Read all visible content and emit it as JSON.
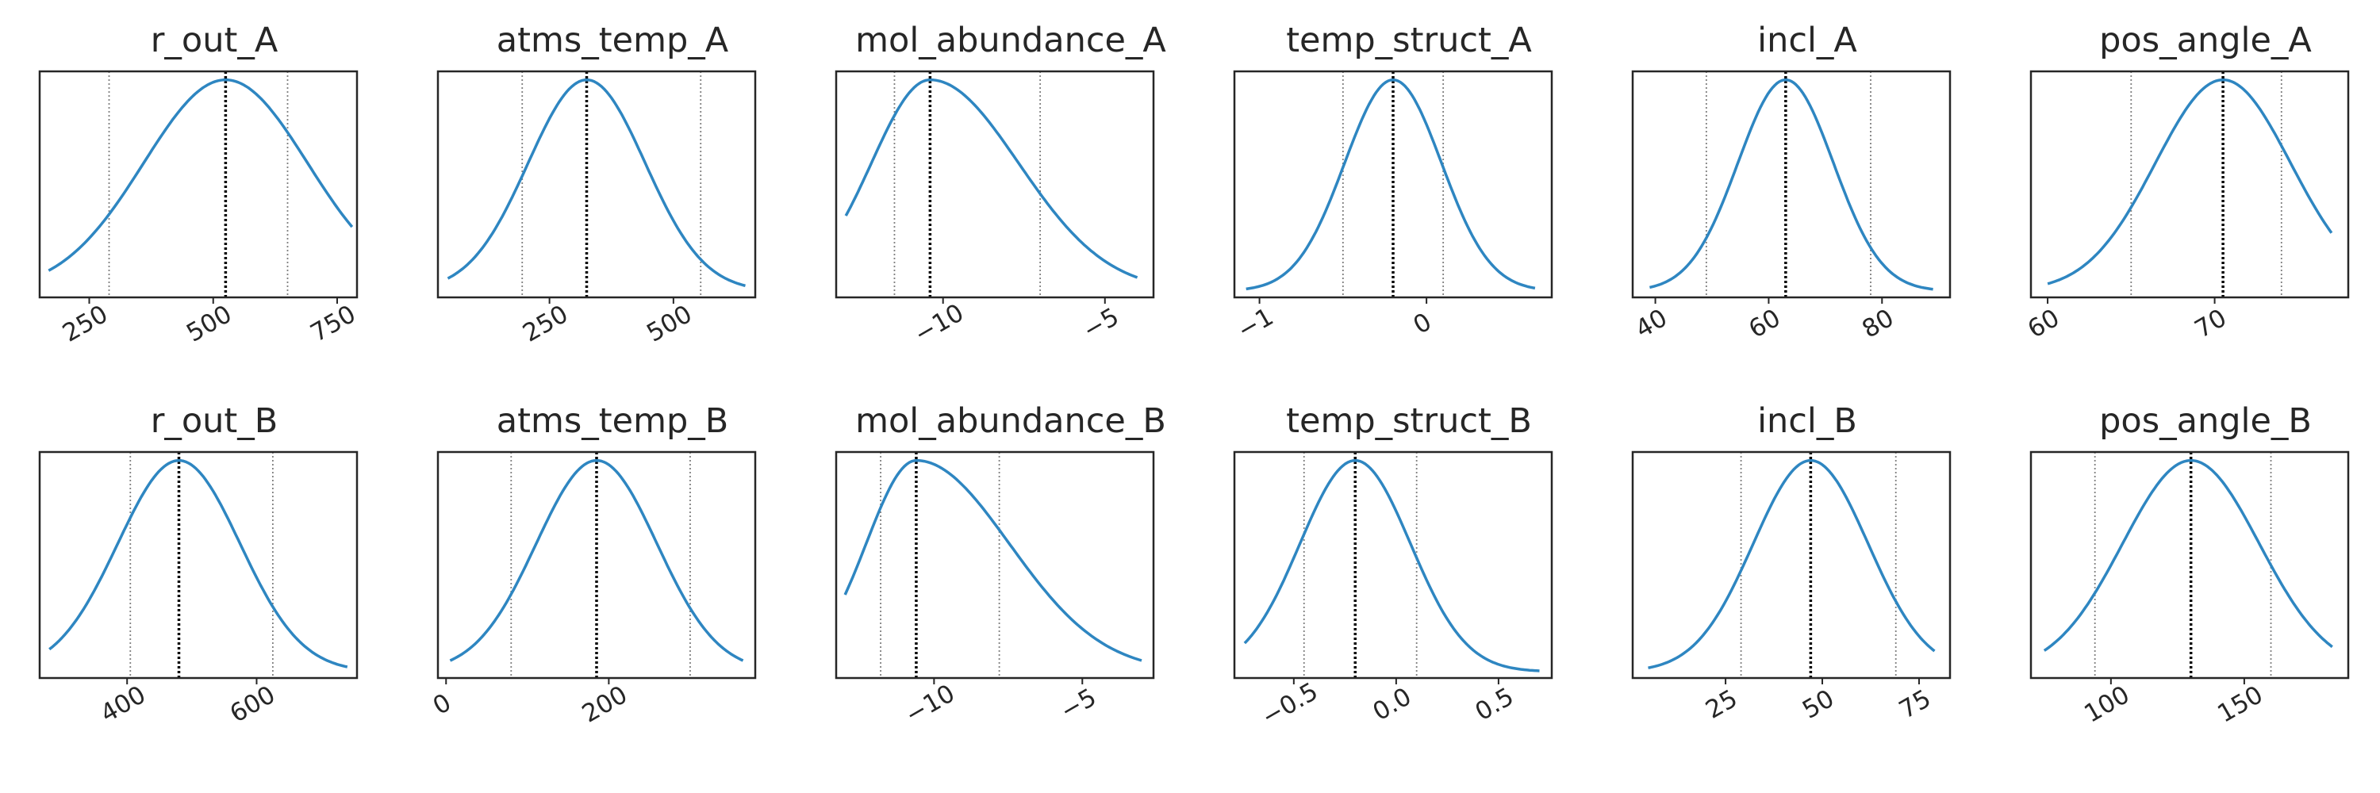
{
  "chart_data": [
    {
      "type": "line",
      "title": "r_out_A",
      "xlim": [
        150,
        790
      ],
      "ticks": [
        250,
        500,
        750
      ],
      "tick_labels": [
        "250",
        "500",
        "750"
      ],
      "mean": 525,
      "low": 290,
      "high": 650,
      "sigma": 245,
      "x_start": 168,
      "x_end": 780,
      "x": [
        168,
        230,
        290,
        350,
        410,
        470,
        525,
        580,
        650,
        700,
        780
      ],
      "y": [
        0.04,
        0.26,
        0.48,
        0.69,
        0.86,
        0.97,
        1.0,
        0.97,
        0.83,
        0.65,
        0.28
      ]
    },
    {
      "type": "line",
      "title": "atms_temp_A",
      "xlim": [
        25,
        665
      ],
      "ticks": [
        250,
        500
      ],
      "tick_labels": [
        "250",
        "500"
      ],
      "mean": 325,
      "low": 195,
      "high": 555,
      "sigma": 175,
      "x_start": 45,
      "x_end": 645,
      "x": [
        45,
        120,
        195,
        260,
        325,
        400,
        480,
        555,
        645
      ],
      "y": [
        0.12,
        0.47,
        0.79,
        0.94,
        1.0,
        0.92,
        0.68,
        0.4,
        0.04
      ]
    },
    {
      "type": "line",
      "title": "mol_abundance_A",
      "xlim": [
        -13.3,
        -3.5
      ],
      "ticks": [
        -10,
        -5
      ],
      "tick_labels": [
        "−10",
        "−5"
      ],
      "mean": -10.4,
      "low": -11.5,
      "high": -7.0,
      "sigma": 3.0,
      "skew": 0.35,
      "x_start": -13.0,
      "x_end": -4.0,
      "x": [
        -13.0,
        -12.0,
        -11.5,
        -10.4,
        -9.5,
        -8.5,
        -7.0,
        -5.5,
        -4.0
      ],
      "y": [
        0.55,
        0.83,
        0.92,
        1.0,
        0.98,
        0.88,
        0.63,
        0.33,
        0.04
      ]
    },
    {
      "type": "line",
      "title": "temp_struct_A",
      "xlim": [
        -1.15,
        0.75
      ],
      "ticks": [
        -1,
        0
      ],
      "tick_labels": [
        "−1",
        "0"
      ],
      "mean": -0.2,
      "low": -0.5,
      "high": 0.1,
      "sigma": 0.43,
      "x_start": -1.08,
      "x_end": 0.65,
      "x": [
        -1.08,
        -0.8,
        -0.5,
        -0.35,
        -0.2,
        -0.05,
        0.1,
        0.35,
        0.65
      ],
      "y": [
        0.05,
        0.27,
        0.78,
        0.95,
        1.0,
        0.95,
        0.78,
        0.4,
        0.04
      ]
    },
    {
      "type": "line",
      "title": "incl_A",
      "xlim": [
        36,
        92
      ],
      "ticks": [
        40,
        60,
        80
      ],
      "tick_labels": [
        "40",
        "60",
        "80"
      ],
      "mean": 63,
      "low": 49,
      "high": 78,
      "sigma": 12.5,
      "x_start": 39,
      "x_end": 89,
      "x": [
        39,
        45,
        49,
        56,
        63,
        70,
        78,
        84,
        89
      ],
      "y": [
        0.2,
        0.56,
        0.79,
        0.95,
        1.0,
        0.95,
        0.69,
        0.36,
        0.04
      ]
    },
    {
      "type": "line",
      "title": "pos_angle_A",
      "xlim": [
        59,
        78
      ],
      "ticks": [
        60,
        70
      ],
      "tick_labels": [
        "60",
        "70"
      ],
      "mean": 70.5,
      "low": 65,
      "high": 74,
      "sigma": 6.0,
      "x_start": 60,
      "x_end": 77,
      "x": [
        60,
        62.5,
        65,
        68,
        70.5,
        72.5,
        74,
        76,
        77
      ],
      "y": [
        0.04,
        0.28,
        0.58,
        0.9,
        1.0,
        0.96,
        0.81,
        0.5,
        0.46
      ]
    },
    {
      "type": "line",
      "title": "r_out_B",
      "xlim": [
        265,
        755
      ],
      "ticks": [
        400,
        600
      ],
      "tick_labels": [
        "400",
        "600"
      ],
      "mean": 480,
      "low": 405,
      "high": 625,
      "sigma": 140,
      "x_start": 280,
      "x_end": 740,
      "x": [
        280,
        340,
        405,
        440,
        480,
        540,
        625,
        680,
        740
      ],
      "y": [
        0.1,
        0.45,
        0.82,
        0.95,
        1.0,
        0.93,
        0.6,
        0.33,
        0.04
      ]
    },
    {
      "type": "line",
      "title": "atms_temp_B",
      "xlim": [
        -10,
        380
      ],
      "ticks": [
        0,
        200
      ],
      "tick_labels": [
        "0",
        "200"
      ],
      "mean": 185,
      "low": 80,
      "high": 300,
      "sigma": 110,
      "x_start": 5,
      "x_end": 365,
      "x": [
        5,
        40,
        80,
        130,
        185,
        240,
        300,
        340,
        365
      ],
      "y": [
        0.04,
        0.33,
        0.65,
        0.9,
        1.0,
        0.9,
        0.6,
        0.31,
        0.1
      ]
    },
    {
      "type": "line",
      "title": "mol_abundance_B",
      "xlim": [
        -13.3,
        -2.6
      ],
      "ticks": [
        -10,
        -5
      ],
      "tick_labels": [
        "−10",
        "−5"
      ],
      "mean": -10.6,
      "low": -11.8,
      "high": -7.8,
      "sigma": 3.0,
      "skew": 0.55,
      "x_start": -13.0,
      "x_end": -3.0,
      "x": [
        -13.0,
        -12.0,
        -11.8,
        -10.6,
        -9.5,
        -7.8,
        -6.5,
        -5.0,
        -3.0
      ],
      "y": [
        0.68,
        0.92,
        0.95,
        1.0,
        0.93,
        0.66,
        0.42,
        0.22,
        0.04
      ]
    },
    {
      "type": "line",
      "title": "temp_struct_B",
      "xlim": [
        -0.79,
        0.76
      ],
      "ticks": [
        -0.5,
        0.0,
        0.5
      ],
      "tick_labels": [
        "−0.5",
        "0.0",
        "0.5"
      ],
      "mean": -0.2,
      "low": -0.45,
      "high": 0.1,
      "sigma": 0.4,
      "x_start": -0.74,
      "x_end": 0.7,
      "x": [
        -0.74,
        -0.45,
        -0.2,
        0.1,
        0.35,
        0.55,
        0.7
      ],
      "y": [
        0.41,
        0.84,
        1.0,
        0.87,
        0.45,
        0.18,
        0.04
      ]
    },
    {
      "type": "line",
      "title": "incl_B",
      "xlim": [
        1,
        83
      ],
      "ticks": [
        25,
        50,
        75
      ],
      "tick_labels": [
        "25",
        "50",
        "75"
      ],
      "mean": 47,
      "low": 29,
      "high": 69,
      "sigma": 22,
      "x_start": 5,
      "x_end": 79,
      "x": [
        5,
        18,
        29,
        38,
        47,
        57,
        69,
        79
      ],
      "y": [
        0.04,
        0.48,
        0.8,
        0.96,
        1.0,
        0.95,
        0.67,
        0.35
      ]
    },
    {
      "type": "line",
      "title": "pos_angle_B",
      "xlim": [
        70,
        189
      ],
      "ticks": [
        100,
        150
      ],
      "tick_labels": [
        "100",
        "150"
      ],
      "mean": 130,
      "low": 94,
      "high": 160,
      "sigma": 38,
      "x_start": 75,
      "x_end": 183,
      "x": [
        75,
        94,
        112,
        130,
        145,
        160,
        183
      ],
      "y": [
        0.04,
        0.4,
        0.82,
        1.0,
        0.92,
        0.63,
        0.32
      ]
    }
  ],
  "colors": {
    "line": "#2e86c1",
    "axes": "#262626",
    "mean_line": "#000000",
    "ci_line": "#808080"
  }
}
